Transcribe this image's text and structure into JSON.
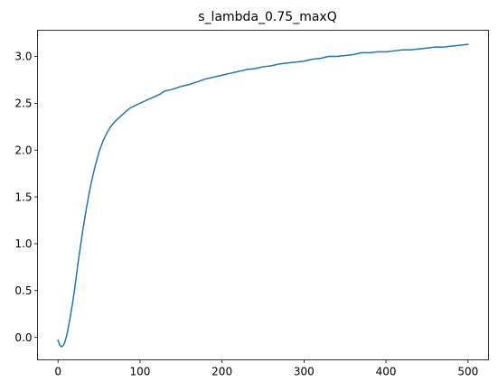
{
  "chart_data": {
    "type": "line",
    "title": "s_lambda_0.75_maxQ",
    "xlabel": "",
    "ylabel": "",
    "xlim": [
      -25,
      525
    ],
    "ylim": [
      -0.24,
      3.28
    ],
    "xticks": [
      0,
      100,
      200,
      300,
      400,
      500
    ],
    "yticks": [
      0.0,
      0.5,
      1.0,
      1.5,
      2.0,
      2.5,
      3.0
    ],
    "xtick_labels": [
      "0",
      "100",
      "200",
      "300",
      "400",
      "500"
    ],
    "ytick_labels": [
      "0.0",
      "0.5",
      "1.0",
      "1.5",
      "2.0",
      "2.5",
      "3.0"
    ],
    "grid": false,
    "legend": "none",
    "series": [
      {
        "color": "#1f77b4",
        "x": [
          0,
          2,
          4,
          6,
          8,
          10,
          12,
          15,
          18,
          20,
          25,
          30,
          35,
          40,
          45,
          50,
          55,
          60,
          65,
          70,
          75,
          80,
          85,
          90,
          95,
          100,
          110,
          120,
          125,
          130,
          140,
          150,
          160,
          170,
          180,
          190,
          200,
          210,
          220,
          230,
          240,
          250,
          260,
          270,
          280,
          290,
          300,
          310,
          320,
          330,
          340,
          350,
          360,
          370,
          380,
          390,
          400,
          410,
          420,
          430,
          440,
          450,
          460,
          470,
          480,
          490,
          500
        ],
        "y": [
          -0.03,
          -0.08,
          -0.1,
          -0.09,
          -0.06,
          0.0,
          0.08,
          0.22,
          0.38,
          0.5,
          0.83,
          1.13,
          1.4,
          1.63,
          1.82,
          1.98,
          2.1,
          2.19,
          2.26,
          2.31,
          2.35,
          2.39,
          2.43,
          2.46,
          2.48,
          2.5,
          2.54,
          2.58,
          2.6,
          2.63,
          2.65,
          2.68,
          2.7,
          2.73,
          2.76,
          2.78,
          2.8,
          2.82,
          2.84,
          2.86,
          2.87,
          2.89,
          2.9,
          2.92,
          2.93,
          2.94,
          2.95,
          2.97,
          2.98,
          3.0,
          3.0,
          3.01,
          3.02,
          3.04,
          3.04,
          3.05,
          3.05,
          3.06,
          3.07,
          3.07,
          3.08,
          3.09,
          3.1,
          3.1,
          3.11,
          3.12,
          3.13
        ]
      }
    ]
  }
}
